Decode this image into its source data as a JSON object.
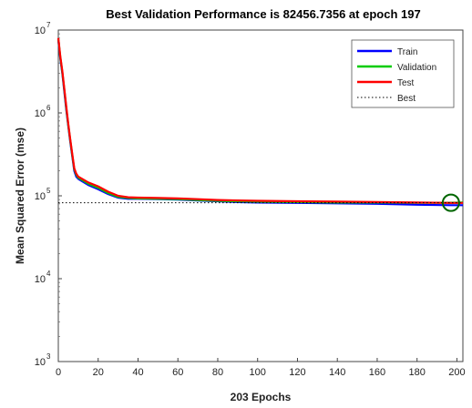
{
  "chart_data": {
    "type": "line",
    "title": "Best Validation Performance is 82456.7356 at epoch 197",
    "xlabel": "203 Epochs",
    "ylabel": "Mean Squared Error  (mse)",
    "xlim": [
      0,
      203
    ],
    "ylim": [
      1000,
      10000000
    ],
    "yscale": "log",
    "grid": false,
    "legend_position": "top-right",
    "xticks": [
      0,
      20,
      40,
      60,
      80,
      100,
      120,
      140,
      160,
      180,
      200
    ],
    "xtick_labels": [
      "0",
      "20",
      "40",
      "60",
      "80",
      "100",
      "120",
      "140",
      "160",
      "180",
      "200"
    ],
    "ytick_bases": [
      "10",
      "10",
      "10",
      "10",
      "10"
    ],
    "ytick_exponents": [
      "3",
      "4",
      "5",
      "6",
      "7"
    ],
    "yticks": [
      1000,
      10000,
      100000,
      1000000,
      10000000
    ],
    "series": [
      {
        "name": "Train",
        "color": "#0000ff",
        "x": [
          0,
          1,
          2,
          3,
          4,
          5,
          6,
          7,
          8,
          9,
          10,
          12,
          15,
          20,
          25,
          30,
          35,
          40,
          50,
          60,
          70,
          80,
          90,
          100,
          120,
          140,
          160,
          180,
          197,
          203
        ],
        "y": [
          7500000,
          4500000,
          3000000,
          1800000,
          1100000,
          700000,
          450000,
          300000,
          200000,
          170000,
          160000,
          150000,
          135000,
          120000,
          105000,
          95000,
          92000,
          92000,
          91000,
          90000,
          88000,
          86000,
          84000,
          83000,
          82000,
          81000,
          80000,
          78000,
          77000,
          77000
        ]
      },
      {
        "name": "Validation",
        "color": "#00cc00",
        "x": [
          0,
          1,
          2,
          3,
          4,
          5,
          6,
          7,
          8,
          9,
          10,
          12,
          15,
          20,
          25,
          30,
          35,
          40,
          50,
          60,
          70,
          80,
          90,
          100,
          120,
          140,
          160,
          180,
          197,
          203
        ],
        "y": [
          7800000,
          4700000,
          3100000,
          1900000,
          1150000,
          720000,
          470000,
          310000,
          210000,
          180000,
          165000,
          155000,
          140000,
          125000,
          108000,
          97000,
          94000,
          93000,
          92000,
          91000,
          89000,
          87000,
          86000,
          85000,
          84000,
          83000,
          83000,
          82600,
          82456.7356,
          83000
        ]
      },
      {
        "name": "Test",
        "color": "#ff0000",
        "x": [
          0,
          1,
          2,
          3,
          4,
          5,
          6,
          7,
          8,
          9,
          10,
          12,
          15,
          20,
          25,
          30,
          35,
          40,
          50,
          60,
          70,
          80,
          90,
          100,
          120,
          140,
          160,
          180,
          197,
          203
        ],
        "y": [
          8000000,
          4800000,
          3200000,
          1950000,
          1200000,
          740000,
          480000,
          320000,
          215000,
          185000,
          170000,
          160000,
          145000,
          130000,
          112000,
          100000,
          96000,
          95000,
          94000,
          93000,
          91000,
          89000,
          88000,
          87000,
          86000,
          85000,
          84000,
          83000,
          82000,
          82000
        ]
      },
      {
        "name": "Best",
        "color": "#000000",
        "style": "dotted",
        "x": [
          0,
          203
        ],
        "y": [
          82456.7356,
          82456.7356
        ]
      }
    ],
    "best_marker": {
      "x": 197,
      "y": 82456.7356,
      "color": "#006600"
    }
  }
}
